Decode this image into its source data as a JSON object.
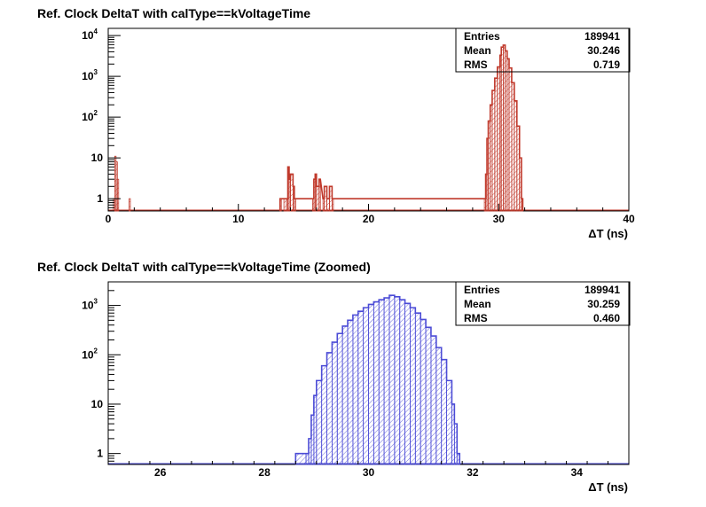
{
  "chart_data": [
    {
      "type": "histogram",
      "title": "Ref. Clock DeltaT with calType==kVoltageTime",
      "xlabel": "ΔT (ns)",
      "xlim": [
        0,
        40
      ],
      "ylim_log": [
        0.5,
        15000
      ],
      "yscale": "log",
      "x_ticks": [
        0,
        10,
        20,
        30,
        40
      ],
      "y_tick_labels": [
        "1",
        "10",
        "10^2",
        "10^3",
        "10^4"
      ],
      "color": "#c0392b",
      "fill": "hatched",
      "stats": {
        "Entries": "189941",
        "Mean": "30.246",
        "RMS": "0.719"
      },
      "bins": [
        [
          0.4,
          1
        ],
        [
          0.5,
          11
        ],
        [
          0.6,
          8
        ],
        [
          0.7,
          3
        ],
        [
          1.6,
          1
        ],
        [
          13.2,
          1
        ],
        [
          13.5,
          1
        ],
        [
          13.7,
          1
        ],
        [
          13.8,
          6
        ],
        [
          13.9,
          3
        ],
        [
          14.0,
          4
        ],
        [
          14.2,
          2
        ],
        [
          14.3,
          1
        ],
        [
          15.7,
          1
        ],
        [
          15.8,
          3
        ],
        [
          15.9,
          4
        ],
        [
          16.0,
          2
        ],
        [
          16.2,
          3
        ],
        [
          16.5,
          1
        ],
        [
          16.6,
          2
        ],
        [
          16.8,
          1
        ],
        [
          17.0,
          2
        ],
        [
          17.2,
          1
        ],
        [
          28.9,
          1
        ],
        [
          29.0,
          4
        ],
        [
          29.1,
          30
        ],
        [
          29.2,
          80
        ],
        [
          29.35,
          200
        ],
        [
          29.5,
          450
        ],
        [
          29.7,
          900
        ],
        [
          29.9,
          1700
        ],
        [
          30.1,
          3300
        ],
        [
          30.2,
          5200
        ],
        [
          30.35,
          5800
        ],
        [
          30.5,
          4200
        ],
        [
          30.65,
          2700
        ],
        [
          30.8,
          1600
        ],
        [
          31.0,
          700
        ],
        [
          31.2,
          250
        ],
        [
          31.4,
          60
        ],
        [
          31.6,
          10
        ],
        [
          31.75,
          1
        ]
      ]
    },
    {
      "type": "histogram",
      "title": "Ref. Clock DeltaT with calType==kVoltageTime  (Zoomed)",
      "xlabel": "ΔT (ns)",
      "xlim": [
        25,
        35
      ],
      "ylim_log": [
        0.6,
        3000
      ],
      "yscale": "log",
      "x_ticks": [
        26,
        28,
        30,
        32,
        34
      ],
      "y_tick_labels": [
        "1",
        "10",
        "10^2",
        "10^3"
      ],
      "color": "#4b4bd6",
      "fill": "hatched",
      "stats": {
        "Entries": "189941",
        "Mean": "30.259",
        "RMS": "0.460"
      },
      "bins": [
        [
          28.6,
          1
        ],
        [
          28.8,
          1
        ],
        [
          28.85,
          2
        ],
        [
          28.9,
          6
        ],
        [
          28.95,
          15
        ],
        [
          29.0,
          30
        ],
        [
          29.1,
          60
        ],
        [
          29.2,
          110
        ],
        [
          29.3,
          180
        ],
        [
          29.4,
          270
        ],
        [
          29.5,
          380
        ],
        [
          29.6,
          500
        ],
        [
          29.7,
          640
        ],
        [
          29.8,
          760
        ],
        [
          29.9,
          900
        ],
        [
          30.0,
          1050
        ],
        [
          30.1,
          1180
        ],
        [
          30.2,
          1300
        ],
        [
          30.3,
          1420
        ],
        [
          30.4,
          1600
        ],
        [
          30.5,
          1500
        ],
        [
          30.6,
          1300
        ],
        [
          30.7,
          1100
        ],
        [
          30.8,
          900
        ],
        [
          30.9,
          700
        ],
        [
          31.0,
          520
        ],
        [
          31.1,
          360
        ],
        [
          31.2,
          240
        ],
        [
          31.3,
          140
        ],
        [
          31.4,
          80
        ],
        [
          31.5,
          30
        ],
        [
          31.6,
          10
        ],
        [
          31.65,
          4
        ],
        [
          31.7,
          1
        ]
      ]
    }
  ]
}
